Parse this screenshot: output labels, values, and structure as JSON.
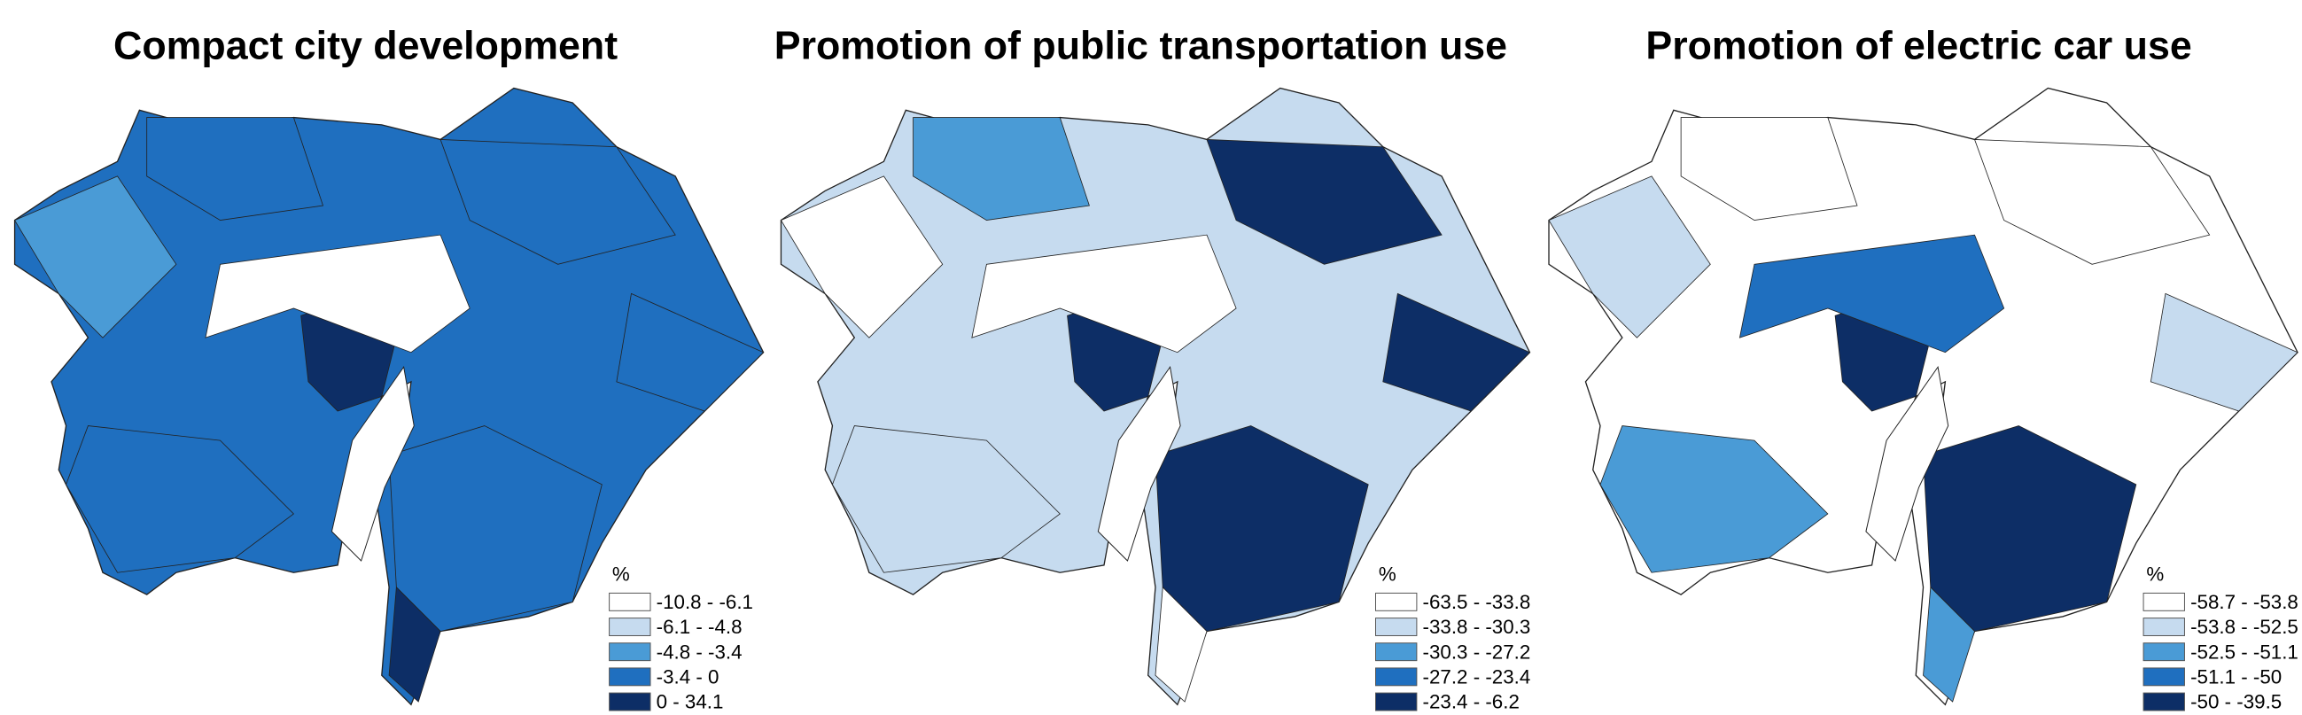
{
  "maps": [
    {
      "title": "Compact city development",
      "legend": {
        "title": "%",
        "items": [
          {
            "label": "-10.8 - -6.1",
            "color": "#ffffff"
          },
          {
            "label": "-6.1 - -4.8",
            "color": "#c6dbef"
          },
          {
            "label": "-4.8 - -3.4",
            "color": "#4a9bd6"
          },
          {
            "label": "-3.4 - 0",
            "color": "#1f6fbf"
          },
          {
            "label": "0 - 34.1",
            "color": "#0d2e66"
          }
        ]
      }
    },
    {
      "title": "Promotion of public transportation use",
      "legend": {
        "title": "%",
        "items": [
          {
            "label": "-63.5 - -33.8",
            "color": "#ffffff"
          },
          {
            "label": "-33.8 - -30.3",
            "color": "#c6dbef"
          },
          {
            "label": "-30.3 - -27.2",
            "color": "#4a9bd6"
          },
          {
            "label": "-27.2 - -23.4",
            "color": "#1f6fbf"
          },
          {
            "label": "-23.4 - -6.2",
            "color": "#0d2e66"
          }
        ]
      }
    },
    {
      "title": "Promotion of  electric car use",
      "legend": {
        "title": "%",
        "items": [
          {
            "label": "-58.7 - -53.8",
            "color": "#ffffff"
          },
          {
            "label": "-53.8 - -52.5",
            "color": "#c6dbef"
          },
          {
            "label": "-52.5 - -51.1",
            "color": "#4a9bd6"
          },
          {
            "label": "-51.1 - -50",
            "color": "#1f6fbf"
          },
          {
            "label": "-50 - -39.5",
            "color": "#0d2e66"
          }
        ]
      }
    }
  ]
}
